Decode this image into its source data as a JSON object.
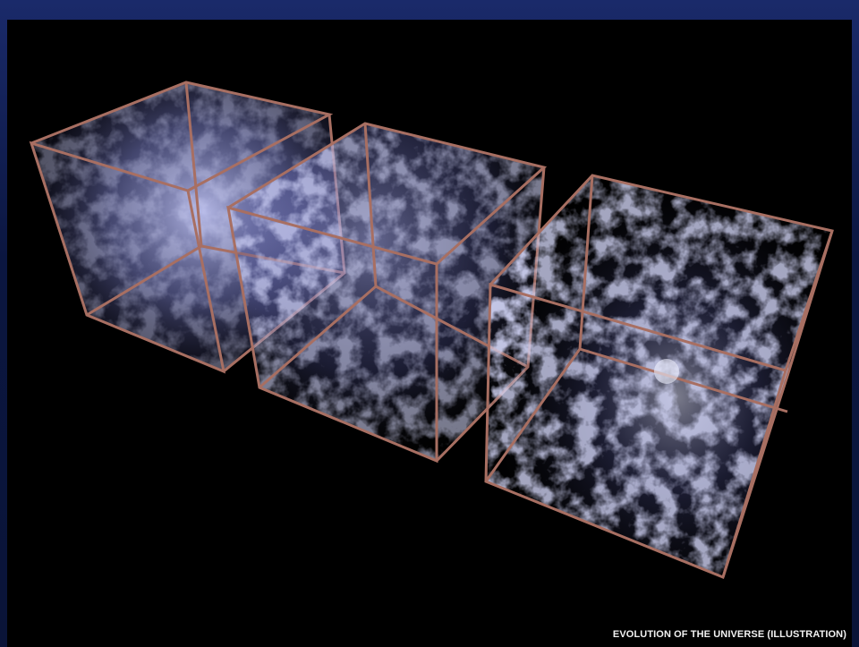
{
  "image": {
    "caption": "EVOLUTION OF THE UNIVERSE (ILLUSTRATION)"
  }
}
